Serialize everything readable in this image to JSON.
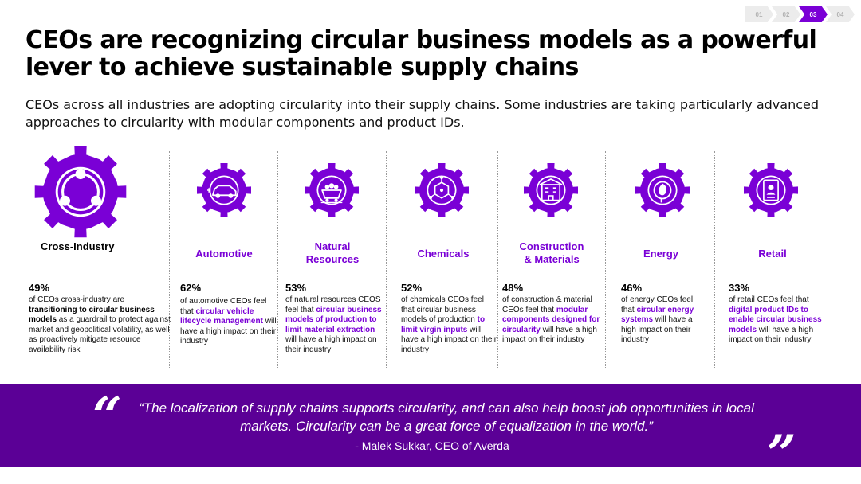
{
  "progress": {
    "steps": [
      "01",
      "02",
      "03",
      "04"
    ],
    "active_step": "03"
  },
  "title": "CEOs are recognizing circular business models as a powerful lever to achieve sustainable supply chains",
  "subtitle": "CEOs across all industries are adopting circularity into their supply chains. Some industries are taking particularly advanced approaches to circularity with modular components and product IDs.",
  "colors": {
    "accent": "#7a00d6",
    "quote_band": "#5b0096",
    "text": "#000000"
  },
  "industries": [
    {
      "name": "Cross-Industry",
      "icon": "cycle-arrows-icon",
      "pct": "49%",
      "desc": [
        {
          "t": "of CEOs cross-industry are "
        },
        {
          "t": "transitioning to circular business models",
          "hl": true
        },
        {
          "t": " as a guardrail to protect against market and geopolitical volatility, as well as proactively mitigate resource availability risk"
        }
      ]
    },
    {
      "name": "Automotive",
      "icon": "car-icon",
      "pct": "62%",
      "desc": [
        {
          "t": "of automotive CEOs feel that "
        },
        {
          "t": "circular vehicle lifecycle management",
          "hl": true
        },
        {
          "t": " will have a high impact on their industry"
        }
      ]
    },
    {
      "name": "Natural\nResources",
      "icon": "mine-cart-icon",
      "pct": "53%",
      "desc": [
        {
          "t": "of natural resources CEOS feel that "
        },
        {
          "t": "circular business models of production to limit material extraction",
          "hl": true
        },
        {
          "t": " will have a high impact on their industry"
        }
      ]
    },
    {
      "name": "Chemicals",
      "icon": "molecule-icon",
      "pct": "52%",
      "desc": [
        {
          "t": "of chemicals CEOs feel that circular business models of production "
        },
        {
          "t": "to limit virgin inputs",
          "hl": true
        },
        {
          "t": " will have a high impact on their industry"
        }
      ]
    },
    {
      "name": "Construction\n& Materials",
      "icon": "building-icon",
      "pct": "48%",
      "desc": [
        {
          "t": "of construction & material CEOs feel that "
        },
        {
          "t": "modular components designed for circularity",
          "hl": true
        },
        {
          "t": " will have a high impact on their industry"
        }
      ]
    },
    {
      "name": "Energy",
      "icon": "leaf-energy-icon",
      "pct": "46%",
      "desc": [
        {
          "t": "of energy CEOs feel that "
        },
        {
          "t": "circular energy systems",
          "hl": true
        },
        {
          "t": " will have a high impact on their industry"
        }
      ]
    },
    {
      "name": "Retail",
      "icon": "id-card-icon",
      "pct": "33%",
      "desc": [
        {
          "t": "of retail CEOs feel that "
        },
        {
          "t": "digital product IDs to enable circular business models",
          "hl": true
        },
        {
          "t": " will have a high impact on their industry"
        }
      ]
    }
  ],
  "quote": {
    "open_mark": "“",
    "close_mark": "”",
    "text": "“The localization of supply chains  supports circularity, and can also help boost job opportunities in local markets. Circularity can be a great force of equalization in the world.”",
    "attribution": "- Malek Sukkar, CEO of Averda"
  }
}
